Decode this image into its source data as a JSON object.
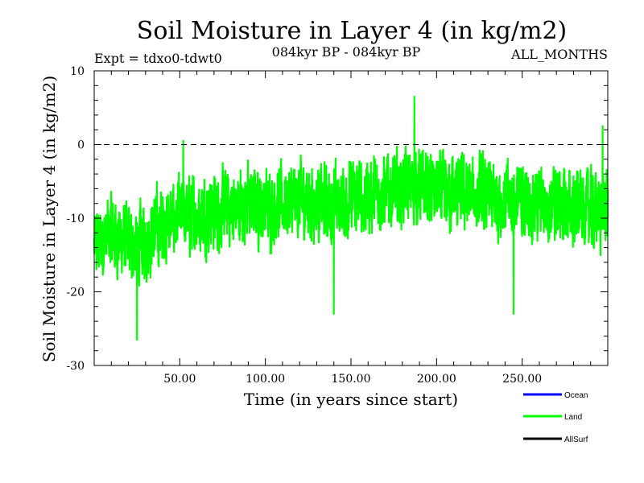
{
  "chart_data": {
    "type": "line",
    "title": "Soil Moisture in Layer 4 (in kg/m2)",
    "subtitle_left": "Expt = tdxo0-tdwt0",
    "subtitle_center": "084kyr BP - 084kyr BP",
    "subtitle_right": "ALL_MONTHS",
    "xlabel": "Time (in years since start)",
    "ylabel": "Soil Moisture in Layer 4 (in kg/m2)",
    "xlim": [
      0,
      300
    ],
    "ylim": [
      -30,
      10
    ],
    "xticks": [
      {
        "value": 50,
        "label": "50.00"
      },
      {
        "value": 100,
        "label": "100.00"
      },
      {
        "value": 150,
        "label": "150.00"
      },
      {
        "value": 200,
        "label": "200.00"
      },
      {
        "value": 250,
        "label": "250.00"
      }
    ],
    "yticks": [
      {
        "value": 10,
        "label": "10"
      },
      {
        "value": 0,
        "label": "0"
      },
      {
        "value": -10,
        "label": "-10"
      },
      {
        "value": -20,
        "label": "-20"
      },
      {
        "value": -30,
        "label": "-30"
      }
    ],
    "zero_line": {
      "value": 0,
      "style": "dashed"
    },
    "legend": {
      "placement": "bottom-right",
      "entries": [
        {
          "name": "Ocean",
          "color": "#0000ff"
        },
        {
          "name": "Land",
          "color": "#00ff00"
        },
        {
          "name": "AllSurf",
          "color": "#000000"
        }
      ]
    },
    "series": [
      {
        "name": "Land",
        "color": "#00ff00",
        "sampling": "monthly (noisy), envelope shown by anchor points",
        "trend_anchors": {
          "x": [
            0,
            10,
            25,
            40,
            50,
            60,
            75,
            90,
            100,
            120,
            140,
            160,
            180,
            190,
            200,
            220,
            240,
            260,
            280,
            300
          ],
          "y": [
            -14,
            -12,
            -14,
            -11,
            -10,
            -9.5,
            -9,
            -8,
            -8.5,
            -7.5,
            -8,
            -7,
            -6,
            -5.5,
            -6.5,
            -7,
            -7.5,
            -8,
            -8.5,
            -9
          ]
        },
        "extremes": {
          "x": [
            25,
            52,
            140,
            187,
            245,
            297
          ],
          "y": [
            -26.5,
            0.5,
            -23,
            6.5,
            -23,
            2.5
          ]
        }
      }
    ]
  }
}
